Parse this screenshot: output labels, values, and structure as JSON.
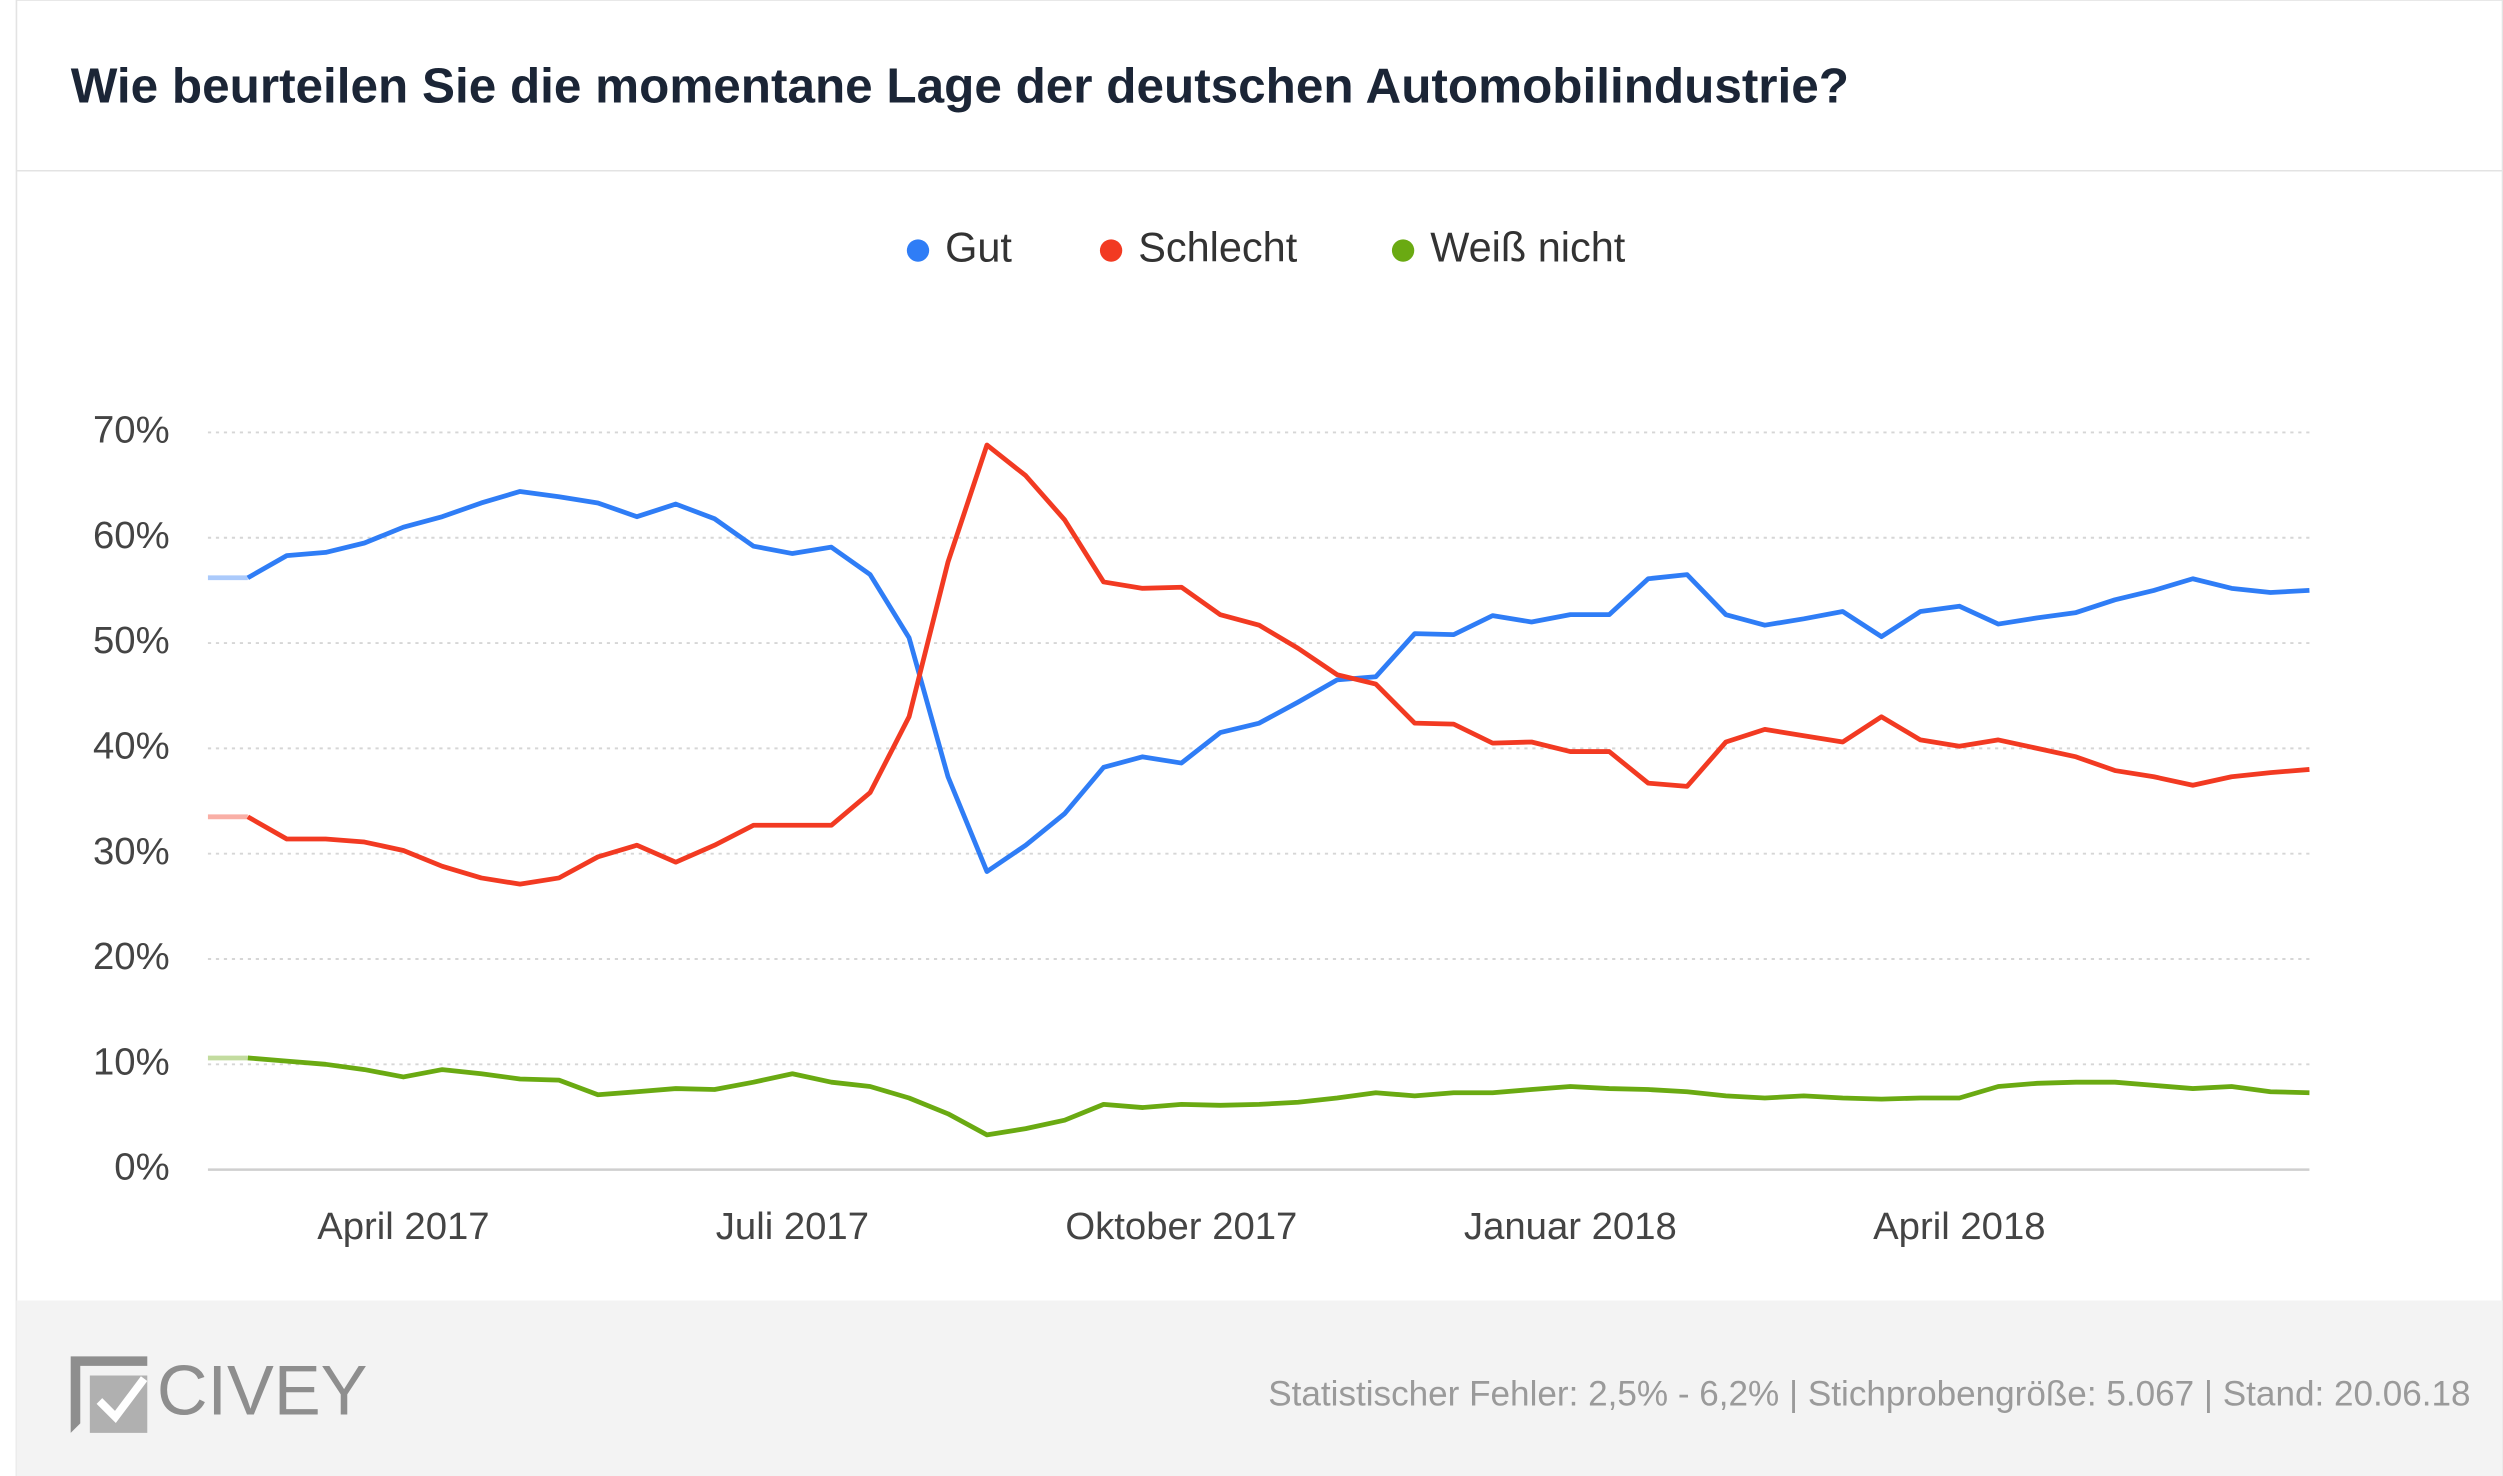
{
  "chart_data": {
    "type": "line",
    "title": "Wie beurteilen Sie die momentane Lage der deutschen Automobilindustrie?",
    "categories": [
      null,
      null,
      null,
      null,
      "April 2017",
      null,
      null,
      null,
      null,
      null,
      null,
      null,
      null,
      null,
      "Juli 2017",
      null,
      null,
      null,
      null,
      null,
      null,
      null,
      null,
      null,
      "Oktober 2017",
      null,
      null,
      null,
      null,
      null,
      null,
      null,
      null,
      null,
      "Januar 2018",
      null,
      null,
      null,
      null,
      null,
      null,
      null,
      null,
      null,
      "April 2018",
      null,
      null,
      null,
      null,
      null,
      null,
      null,
      null,
      null
    ],
    "series": [
      {
        "name": "Gut",
        "color": "#2f7df6",
        "values": [
          56.2,
          58.3,
          58.6,
          59.5,
          61,
          62,
          63.3,
          64.4,
          63.9,
          63.3,
          62,
          63.2,
          61.8,
          59.2,
          58.5,
          59.1,
          56.5,
          50.5,
          37.3,
          28.3,
          30.8,
          33.8,
          38.2,
          39.2,
          38.6,
          41.5,
          42.4,
          44.4,
          46.5,
          46.8,
          50.9,
          50.8,
          52.6,
          52,
          52.7,
          52.7,
          56.1,
          56.5,
          52.7,
          51.7,
          52.3,
          53,
          50.6,
          53,
          53.5,
          51.8,
          52.4,
          52.9,
          54.1,
          55,
          56.1,
          55.2,
          54.8,
          55
        ]
      },
      {
        "name": "Schlecht",
        "color": "#f23a22",
        "values": [
          33.5,
          31.4,
          31.4,
          31.1,
          30.3,
          28.8,
          27.7,
          27.1,
          27.7,
          29.7,
          30.8,
          29.2,
          30.8,
          32.7,
          32.7,
          32.7,
          35.8,
          43,
          57.7,
          68.8,
          65.9,
          61.7,
          55.8,
          55.2,
          55.3,
          52.7,
          51.7,
          49.5,
          47,
          46.1,
          42.4,
          42.3,
          40.5,
          40.6,
          39.7,
          39.7,
          36.7,
          36.4,
          40.6,
          41.8,
          41.2,
          40.6,
          43,
          40.8,
          40.2,
          40.8,
          40,
          39.2,
          37.9,
          37.3,
          36.5,
          37.3,
          37.7,
          38
        ]
      },
      {
        "name": "Weiß nicht",
        "color": "#6aaa12",
        "values": [
          10.6,
          10.3,
          10,
          9.5,
          8.8,
          9.5,
          9.1,
          8.6,
          8.5,
          7.1,
          7.4,
          7.7,
          7.6,
          8.3,
          9.1,
          8.3,
          7.9,
          6.8,
          5.3,
          3.3,
          3.9,
          4.7,
          6.2,
          5.9,
          6.2,
          6.1,
          6.2,
          6.4,
          6.8,
          7.3,
          7,
          7.3,
          7.3,
          7.6,
          7.9,
          7.7,
          7.6,
          7.4,
          7,
          6.8,
          7,
          6.8,
          6.7,
          6.8,
          6.8,
          7.9,
          8.2,
          8.3,
          8.3,
          8,
          7.7,
          7.9,
          7.4,
          7.3
        ]
      }
    ],
    "ylim": [
      0,
      70
    ],
    "yticks": [
      {
        "value": 0,
        "label": "0%"
      },
      {
        "value": 10,
        "label": "10%"
      },
      {
        "value": 20,
        "label": "20%"
      },
      {
        "value": 30,
        "label": "30%"
      },
      {
        "value": 40,
        "label": "40%"
      },
      {
        "value": 50,
        "label": "50%"
      },
      {
        "value": 60,
        "label": "60%"
      },
      {
        "value": 70,
        "label": "70%"
      }
    ],
    "grid": true,
    "legend": "top",
    "logo": "CIVEY",
    "footer": "Statistischer Fehler: 2,5% - 6,2% | Stichprobengröße: 5.067 | Stand: 20.06.18"
  }
}
